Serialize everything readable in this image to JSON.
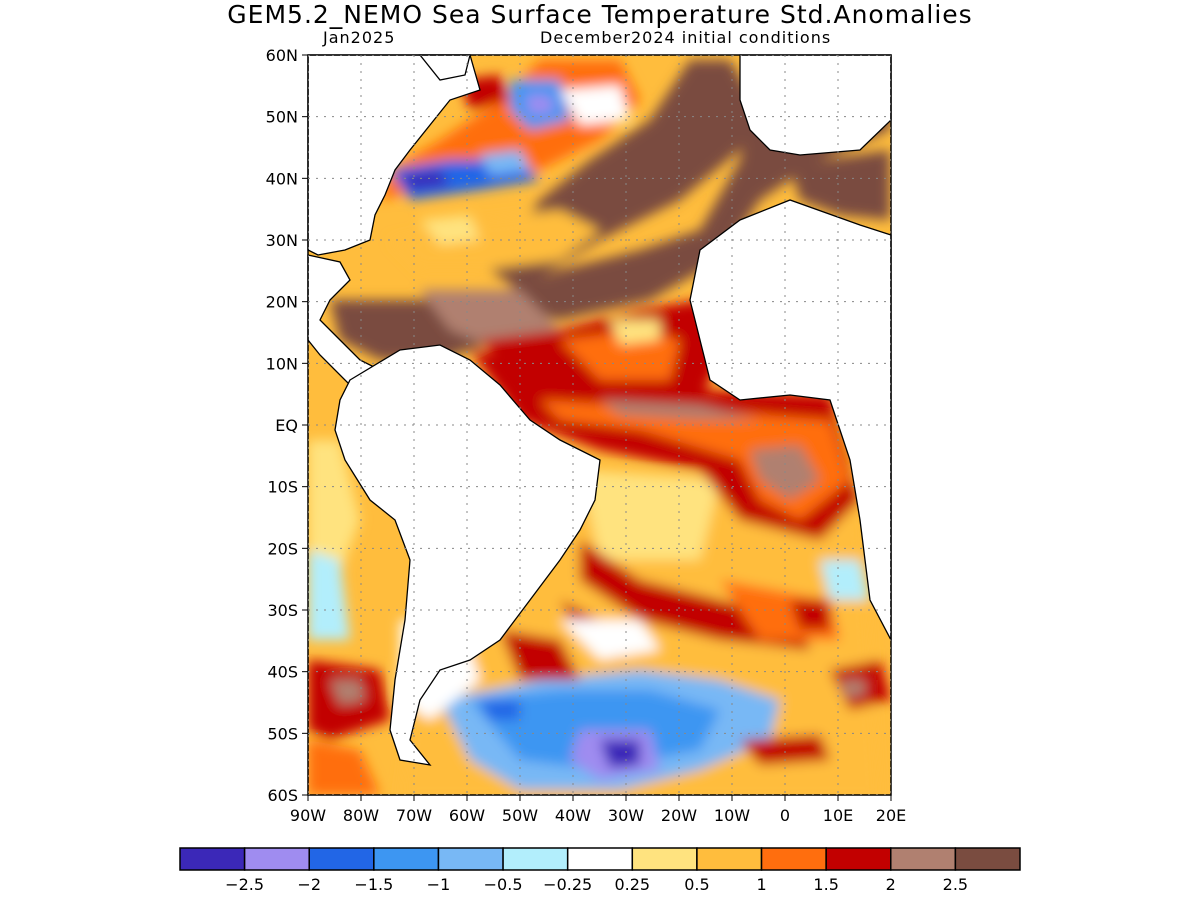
{
  "title": "GEM5.2_NEMO Sea Surface Temperature Std.Anomalies",
  "subtitle_left": "Jan2025",
  "subtitle_right": "December2024 initial conditions",
  "map": {
    "lat_labels": [
      "60N",
      "50N",
      "40N",
      "30N",
      "20N",
      "10N",
      "EQ",
      "10S",
      "20S",
      "30S",
      "40S",
      "50S",
      "60S"
    ],
    "lon_labels": [
      "90W",
      "80W",
      "70W",
      "60W",
      "50W",
      "40W",
      "30W",
      "20W",
      "10W",
      "0",
      "10E",
      "20E"
    ]
  },
  "colorbar": {
    "colors": [
      "#3b28b8",
      "#9f8cf0",
      "#2266e6",
      "#3d96f2",
      "#78b8f5",
      "#b2eefc",
      "#ffffff",
      "#ffe37f",
      "#ffbd3d",
      "#ff6e0e",
      "#c20000",
      "#b08070",
      "#7a4c40"
    ],
    "labels": [
      "−2.5",
      "−2",
      "−1.5",
      "−1",
      "−0.5",
      "−0.25",
      "0.25",
      "0.5",
      "1",
      "1.5",
      "2",
      "2.5"
    ]
  }
}
